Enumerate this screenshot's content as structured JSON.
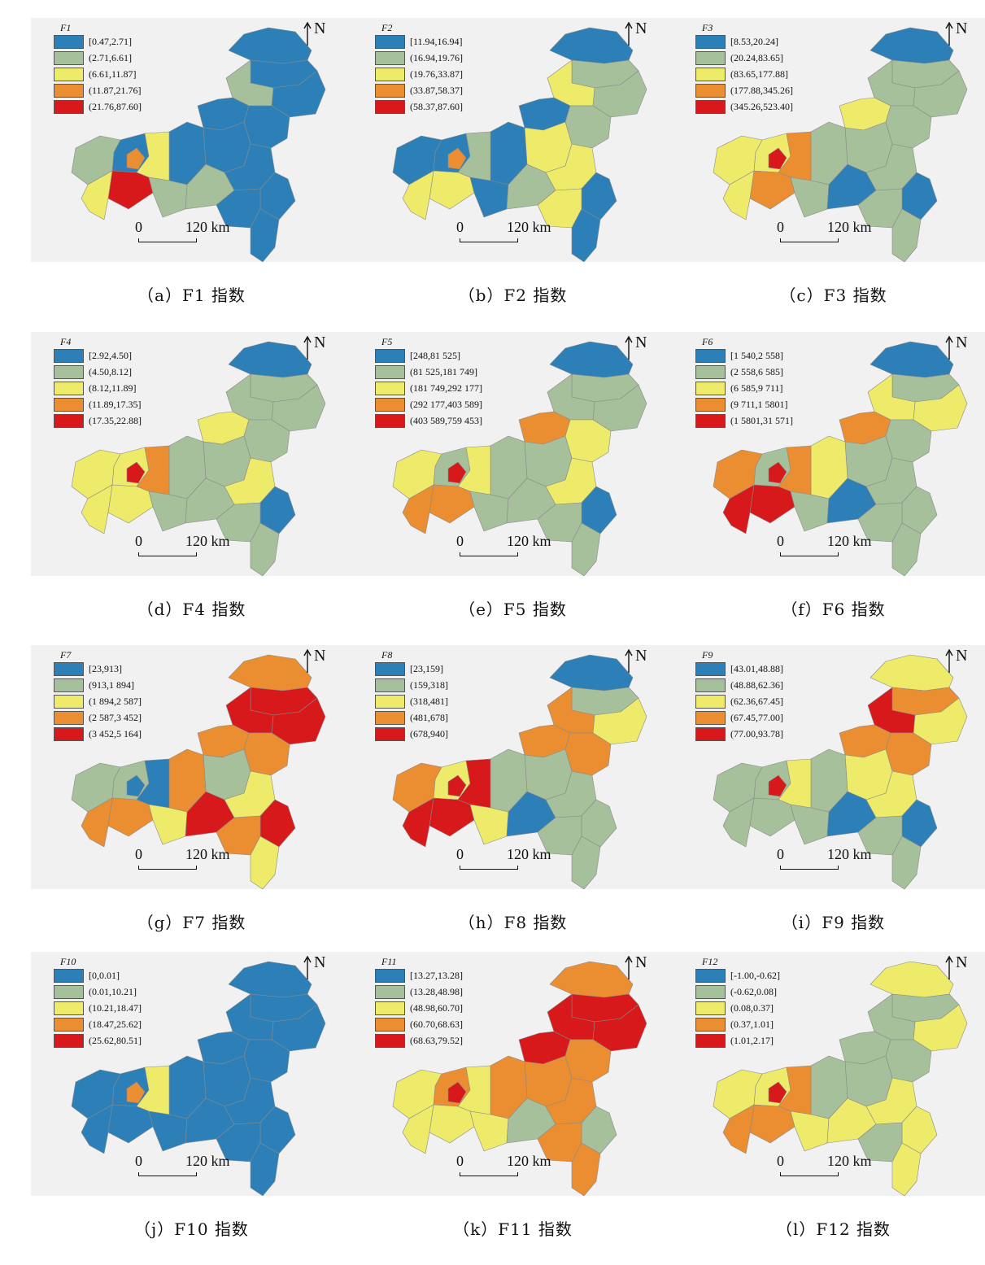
{
  "map_shape_name": "chongqing-region",
  "north_label": "N",
  "scale": {
    "start": "0",
    "distance": "120 km"
  },
  "class_colors": [
    "#2d7fb8",
    "#a5c09a",
    "#eeea6a",
    "#ea8e31",
    "#d7191c"
  ],
  "panels": [
    {
      "id": "a",
      "legend_title": "F1",
      "caption": "（a）F1 指数",
      "legend": [
        "[0.47,2.71]",
        "(2.71,6.61]",
        "(6.61,11.87]",
        "(11.87,21.76]",
        "(21.76,87.60]"
      ],
      "region_classes": [
        0,
        0,
        0,
        1,
        0,
        0,
        0,
        0,
        0,
        1,
        2,
        3,
        4,
        2,
        1,
        1,
        0,
        0,
        0,
        0
      ]
    },
    {
      "id": "b",
      "legend_title": "F2",
      "caption": "（b）F2 指数",
      "legend": [
        "[11.94,16.94]",
        "(16.94,19.76]",
        "(19.76,33.87]",
        "(33.87,58.37]",
        "(58.37,87.60]"
      ],
      "region_classes": [
        0,
        1,
        1,
        2,
        0,
        1,
        2,
        0,
        0,
        0,
        1,
        3,
        2,
        2,
        0,
        1,
        2,
        0,
        2,
        0
      ]
    },
    {
      "id": "c",
      "legend_title": "F3",
      "caption": "（c）F3 指数",
      "legend": [
        "[8.53,20.24]",
        "(20.24,83.65]",
        "(83.65,177.88]",
        "(177.88,345.26]",
        "(345.26,523.40]"
      ],
      "region_classes": [
        0,
        1,
        1,
        1,
        2,
        1,
        1,
        1,
        2,
        2,
        3,
        4,
        3,
        2,
        1,
        0,
        1,
        0,
        1,
        1
      ]
    },
    {
      "id": "d",
      "legend_title": "F4",
      "caption": "（d）F4 指数",
      "legend": [
        "[2.92,4.50]",
        "(4.50,8.12]",
        "(8.12,11.89]",
        "(11.89,17.35]",
        "(17.35,22.88]"
      ],
      "region_classes": [
        0,
        1,
        1,
        1,
        2,
        1,
        1,
        1,
        2,
        2,
        3,
        4,
        2,
        2,
        1,
        1,
        2,
        0,
        1,
        1
      ]
    },
    {
      "id": "e",
      "legend_title": "F5",
      "caption": "（e）F5 指数",
      "legend": [
        "[248,81 525]",
        "(81 525,181 749]",
        "(181 749,292 177]",
        "(292 177,403 589]",
        "(403 589,759 453]"
      ],
      "region_classes": [
        0,
        1,
        1,
        1,
        3,
        2,
        1,
        1,
        1,
        2,
        2,
        4,
        3,
        3,
        1,
        1,
        2,
        0,
        1,
        1
      ]
    },
    {
      "id": "f",
      "legend_title": "F6",
      "caption": "（f）F6 指数",
      "legend": [
        "[1 540,2 558]",
        "(2 558,6 585]",
        "(6 585,9 711]",
        "(9 711,1 5801]",
        "(1 5801,31 571]"
      ],
      "region_classes": [
        0,
        1,
        2,
        2,
        3,
        1,
        1,
        2,
        1,
        3,
        3,
        4,
        4,
        4,
        1,
        0,
        1,
        1,
        1,
        1
      ]
    },
    {
      "id": "g",
      "legend_title": "F7",
      "caption": "（g）F7 指数",
      "legend": [
        "[23,913]",
        "(913,1 894]",
        "(1 894,2 587]",
        "(2 587,3 452]",
        "(3 452,5 164]"
      ],
      "region_classes": [
        3,
        4,
        4,
        4,
        3,
        3,
        1,
        3,
        1,
        1,
        0,
        0,
        3,
        3,
        2,
        4,
        2,
        4,
        3,
        2
      ]
    },
    {
      "id": "h",
      "legend_title": "F8",
      "caption": "（h）F8 指数",
      "legend": [
        "[23,159]",
        "(159,318]",
        "(318,481]",
        "(481,678]",
        "(678,940]"
      ],
      "region_classes": [
        0,
        1,
        2,
        3,
        3,
        3,
        1,
        1,
        2,
        3,
        4,
        4,
        4,
        4,
        2,
        0,
        1,
        1,
        1,
        1
      ]
    },
    {
      "id": "i",
      "legend_title": "F9",
      "caption": "（i）F9 指数",
      "legend": [
        "[43.01,48.88]",
        "(48.88,62.36]",
        "(62.36,67.45]",
        "(67.45,77.00]",
        "(77.00,93.78]"
      ],
      "region_classes": [
        2,
        3,
        2,
        4,
        3,
        3,
        2,
        1,
        1,
        1,
        2,
        4,
        1,
        1,
        1,
        0,
        2,
        0,
        1,
        1
      ]
    },
    {
      "id": "j",
      "legend_title": "F10",
      "caption": "（j）F10 指数",
      "legend": [
        "[0,0.01]",
        "(0.01,10.21]",
        "(10.21,18.47]",
        "(18.47,25.62]",
        "(25.62,80.51]"
      ],
      "region_classes": [
        0,
        0,
        0,
        0,
        0,
        0,
        0,
        0,
        0,
        0,
        2,
        3,
        0,
        0,
        0,
        0,
        0,
        0,
        0,
        0
      ]
    },
    {
      "id": "k",
      "legend_title": "F11",
      "caption": "（k）F11 指数",
      "legend": [
        "[13.27,13.28]",
        "(13.28,48.98]",
        "(48.98,60.70]",
        "(60.70,68.63]",
        "(68.63,79.52]"
      ],
      "region_classes": [
        3,
        4,
        4,
        4,
        4,
        3,
        3,
        3,
        3,
        2,
        2,
        4,
        2,
        2,
        2,
        1,
        3,
        1,
        3,
        3
      ]
    },
    {
      "id": "l",
      "legend_title": "F12",
      "caption": "（l）F12 指数",
      "legend": [
        "[-1.00,-0.62]",
        "(-0.62,0.08]",
        "(0.08,0.37]",
        "(0.37,1.01]",
        "(1.01,2.17]"
      ],
      "region_classes": [
        2,
        1,
        2,
        1,
        1,
        1,
        1,
        1,
        2,
        2,
        3,
        4,
        3,
        3,
        2,
        2,
        2,
        2,
        1,
        2
      ]
    }
  ]
}
